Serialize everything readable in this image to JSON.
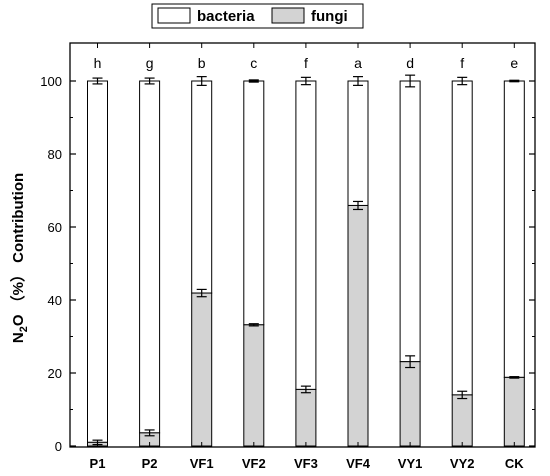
{
  "chart_data": {
    "type": "bar",
    "stacked": true,
    "categories": [
      "P1",
      "P2",
      "VF1",
      "VF2",
      "VF3",
      "VF4",
      "VY1",
      "VY2",
      "CK"
    ],
    "letters": [
      "h",
      "g",
      "b",
      "c",
      "f",
      "a",
      "d",
      "f",
      "e"
    ],
    "series": [
      {
        "name": "fungi",
        "color": "#d3d3d3",
        "values": [
          1.0,
          3.6,
          41.9,
          33.2,
          15.5,
          65.9,
          23.1,
          14.0,
          18.8
        ],
        "errors": [
          0.6,
          0.8,
          1.0,
          0.3,
          0.9,
          1.1,
          1.6,
          1.0,
          0.2
        ]
      },
      {
        "name": "bacteria",
        "color": "#ffffff",
        "values": [
          99.0,
          96.4,
          58.1,
          66.8,
          84.5,
          34.1,
          76.9,
          86.0,
          81.2
        ],
        "errors": [
          0.8,
          0.8,
          1.2,
          0.3,
          1.0,
          1.2,
          1.6,
          1.0,
          0.2
        ]
      }
    ],
    "ylabel": {
      "main": "N",
      "sub": "2",
      "rest": "O （%） Contribution"
    },
    "ylim": [
      0,
      100
    ],
    "yticks": [
      0,
      20,
      40,
      60,
      80,
      100
    ],
    "legend": "top-center",
    "grid": false
  }
}
